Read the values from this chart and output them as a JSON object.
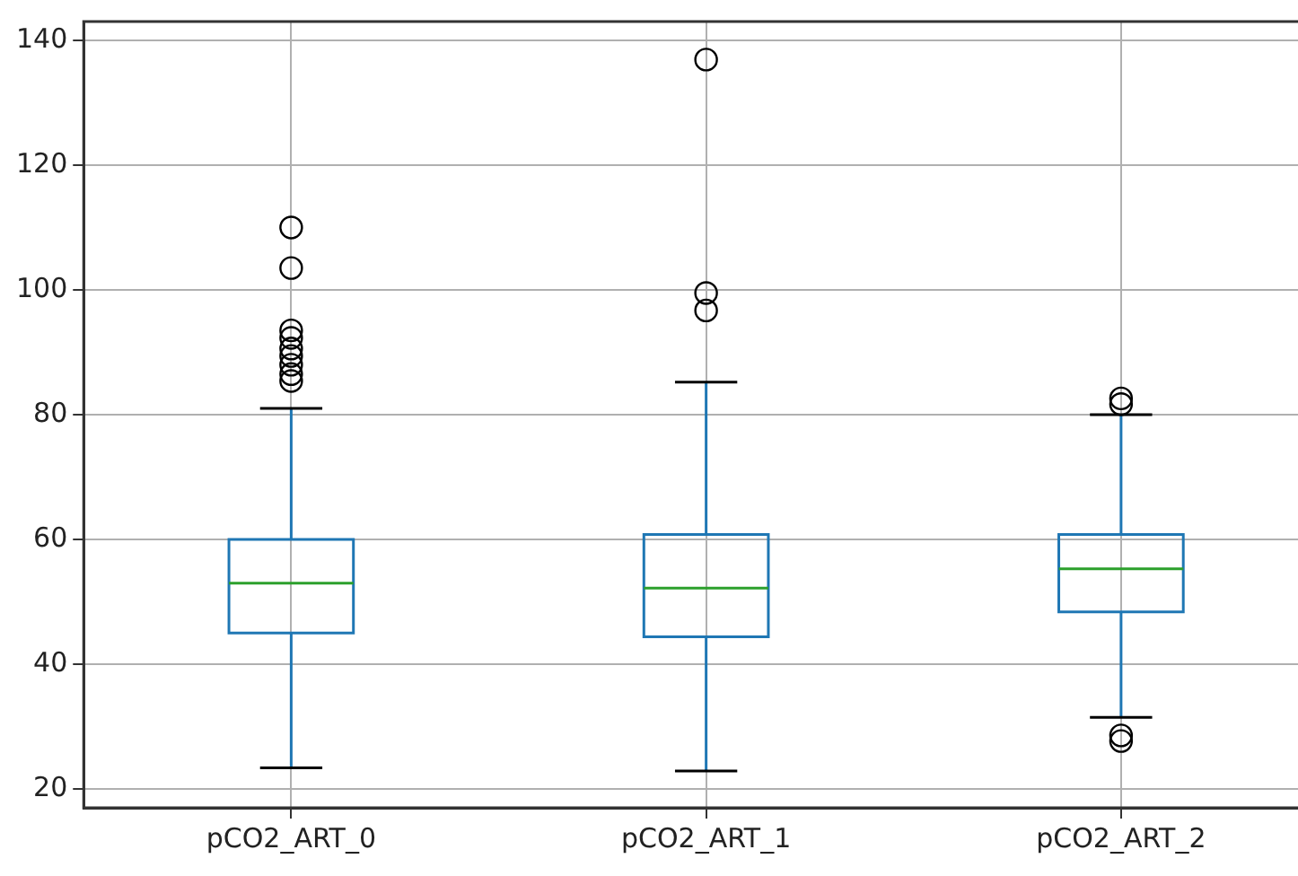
{
  "chart_data": {
    "type": "box",
    "categories": [
      "pCO2_ART_0",
      "pCO2_ART_1",
      "pCO2_ART_2"
    ],
    "color": "#1f77b4",
    "boxes": [
      {
        "low": 23.4,
        "q1": 45,
        "median": 53,
        "q3": 60,
        "high": 81,
        "outliers": [
          110,
          103.5,
          93.5,
          92.3,
          90.6,
          89.4,
          88,
          86.5,
          85.4
        ]
      },
      {
        "low": 22.9,
        "q1": 44.4,
        "median": 52.2,
        "q3": 60.8,
        "high": 85.2,
        "outliers": [
          136.9,
          99.5,
          96.7
        ]
      },
      {
        "low": 31.5,
        "q1": 48.4,
        "median": 55.3,
        "q3": 60.8,
        "high": 80,
        "outliers": [
          82.6,
          81.7,
          28.6,
          27.7
        ]
      }
    ],
    "ylim": [
      17,
      143
    ],
    "yticks": [
      20,
      40,
      60,
      80,
      100,
      120,
      140
    ],
    "grid": true,
    "marker": "circle"
  }
}
